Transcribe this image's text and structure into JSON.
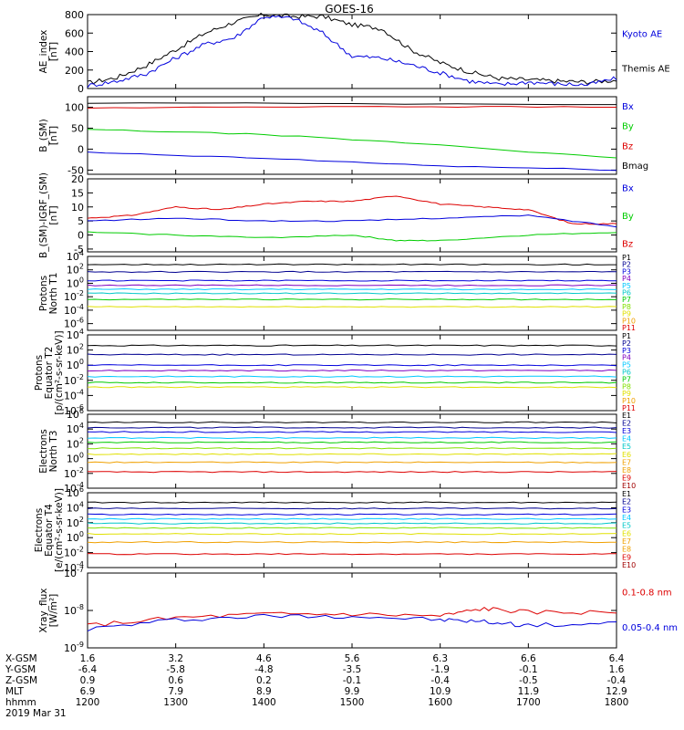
{
  "title": "GOES-16",
  "x_ticks": [
    "1200",
    "1300",
    "1400",
    "1500",
    "1600",
    "1700",
    "1800"
  ],
  "x_range": [
    0,
    360
  ],
  "ephemeris": {
    "labels": [
      "X-GSM",
      "Y-GSM",
      "Z-GSM",
      "MLT",
      "hhmm"
    ],
    "date": "2019 Mar 31",
    "rows": [
      [
        "1.6",
        "3.2",
        "4.6",
        "5.6",
        "6.3",
        "6.6",
        "6.4"
      ],
      [
        "-6.4",
        "-5.8",
        "-4.8",
        "-3.5",
        "-1.9",
        "-0.1",
        "1.6"
      ],
      [
        "0.9",
        "0.6",
        "0.2",
        "-0.1",
        "-0.4",
        "-0.5",
        "-0.4"
      ],
      [
        "6.9",
        "7.9",
        "8.9",
        "9.9",
        "10.9",
        "11.9",
        "12.9"
      ],
      [
        "1200",
        "1300",
        "1400",
        "1500",
        "1600",
        "1700",
        "1800"
      ]
    ]
  },
  "colors": {
    "black": "#000000",
    "blue": "#0000dd",
    "red": "#dd0000",
    "green": "#00cc00",
    "navy": "#000090",
    "purple": "#8000c0",
    "cyan": "#00c8ff",
    "teal": "#00c8c8",
    "lime": "#80e000",
    "yellow": "#e0e000",
    "orange": "#f0a000",
    "darkred": "#a00000"
  },
  "chart_data": [
    {
      "type": "line",
      "ylabel": [
        "AE_index",
        "[nT]"
      ],
      "ylim": [
        0,
        800
      ],
      "yticks": [
        "0",
        "200",
        "400",
        "600",
        "800"
      ],
      "legend": [
        {
          "name": "Kyoto AE",
          "color": "#0000dd"
        },
        {
          "name": "Themis AE",
          "color": "#000000"
        }
      ],
      "series": [
        {
          "name": "Themis AE",
          "color": "#000000",
          "x": [
            0,
            20,
            40,
            60,
            80,
            100,
            120,
            140,
            160,
            180,
            200,
            220,
            240,
            260,
            280,
            300,
            320,
            340,
            360
          ],
          "y": [
            60,
            120,
            250,
            420,
            600,
            720,
            800,
            780,
            780,
            690,
            650,
            420,
            280,
            180,
            110,
            95,
            80,
            70,
            90
          ]
        },
        {
          "name": "Kyoto AE",
          "color": "#0000dd",
          "x": [
            0,
            20,
            40,
            60,
            80,
            100,
            120,
            140,
            160,
            180,
            200,
            220,
            240,
            260,
            280,
            300,
            320,
            340,
            360
          ],
          "y": [
            30,
            80,
            160,
            330,
            480,
            550,
            780,
            760,
            600,
            350,
            330,
            260,
            170,
            80,
            40,
            70,
            50,
            40,
            110
          ]
        }
      ]
    },
    {
      "type": "line",
      "ylabel": [
        "B_(SM)",
        "[nT]"
      ],
      "ylim": [
        -60,
        125
      ],
      "yticks": [
        "-50",
        "0",
        "50",
        "100"
      ],
      "ytickvals": [
        -50,
        0,
        50,
        100
      ],
      "legend": [
        {
          "name": "Bx",
          "color": "#0000dd"
        },
        {
          "name": "By",
          "color": "#00cc00"
        },
        {
          "name": "Bz",
          "color": "#dd0000"
        },
        {
          "name": "Bmag",
          "color": "#000000"
        }
      ],
      "series": [
        {
          "name": "Bmag",
          "color": "#000000",
          "x": [
            0,
            360
          ],
          "y": [
            110,
            107
          ]
        },
        {
          "name": "Bz",
          "color": "#dd0000",
          "x": [
            0,
            180,
            360
          ],
          "y": [
            98,
            102,
            100
          ]
        },
        {
          "name": "By",
          "color": "#00cc00",
          "x": [
            0,
            120,
            240,
            360
          ],
          "y": [
            47,
            35,
            10,
            -22
          ]
        },
        {
          "name": "Bx",
          "color": "#0000dd",
          "x": [
            0,
            120,
            240,
            360
          ],
          "y": [
            -8,
            -22,
            -40,
            -50
          ]
        }
      ]
    },
    {
      "type": "line",
      "ylabel": [
        "B_(SM)-IGRF_(SM)",
        "[nT]"
      ],
      "ylim": [
        -6,
        20
      ],
      "yticks": [
        "-5",
        "0",
        "5",
        "10",
        "15",
        "20"
      ],
      "ytickvals": [
        -5,
        0,
        5,
        10,
        15,
        20
      ],
      "legend": [
        {
          "name": "Bx",
          "color": "#0000dd"
        },
        {
          "name": "By",
          "color": "#00cc00"
        },
        {
          "name": "Bz",
          "color": "#dd0000"
        }
      ],
      "series": [
        {
          "name": "Bz",
          "color": "#dd0000",
          "x": [
            0,
            30,
            60,
            90,
            120,
            150,
            180,
            210,
            240,
            270,
            300,
            330,
            360
          ],
          "y": [
            6,
            7,
            10,
            9,
            11,
            12,
            12,
            14,
            11,
            10,
            9,
            4,
            4
          ]
        },
        {
          "name": "Bx",
          "color": "#0000dd",
          "x": [
            0,
            60,
            120,
            180,
            240,
            300,
            360
          ],
          "y": [
            5,
            6,
            5,
            5,
            6,
            7,
            3
          ]
        },
        {
          "name": "By",
          "color": "#00cc00",
          "x": [
            0,
            60,
            120,
            180,
            210,
            240,
            300,
            360
          ],
          "y": [
            1,
            0,
            -1,
            0,
            -2,
            -2,
            0,
            1
          ]
        }
      ]
    },
    {
      "type": "line",
      "log": true,
      "ylabel": [
        "Protons",
        "North T1"
      ],
      "ylim": [
        -7,
        4
      ],
      "yticks": [
        "10^4",
        "10^2",
        "10^0",
        "10^-2",
        "10^-4",
        "10^-6"
      ],
      "ytickvals": [
        4,
        2,
        0,
        -2,
        -4,
        -6
      ],
      "legend": [
        {
          "name": "P1",
          "color": "#000000"
        },
        {
          "name": "P2",
          "color": "#000090"
        },
        {
          "name": "P3",
          "color": "#0000dd"
        },
        {
          "name": "P4",
          "color": "#8000c0"
        },
        {
          "name": "P5",
          "color": "#00c8ff"
        },
        {
          "name": "P6",
          "color": "#00c8c8"
        },
        {
          "name": "P7",
          "color": "#00cc00"
        },
        {
          "name": "P8",
          "color": "#80e000"
        },
        {
          "name": "P9",
          "color": "#e0e000"
        },
        {
          "name": "P10",
          "color": "#f0a000"
        },
        {
          "name": "P11",
          "color": "#dd0000"
        }
      ],
      "series": [
        {
          "name": "P1",
          "color": "#000000",
          "y": 2.8
        },
        {
          "name": "P2",
          "color": "#000090",
          "y": 1.7
        },
        {
          "name": "P3",
          "color": "#0000dd",
          "y": 0.4
        },
        {
          "name": "P4",
          "color": "#8000c0",
          "y": -0.3
        },
        {
          "name": "P5",
          "color": "#00c8ff",
          "y": -0.9
        },
        {
          "name": "P6",
          "color": "#00c8c8",
          "y": -1.5
        },
        {
          "name": "P7",
          "color": "#00cc00",
          "y": -2.4
        },
        {
          "name": "P8",
          "color": "#e0e000",
          "y": -3.5
        }
      ]
    },
    {
      "type": "line",
      "log": true,
      "ylabel": [
        "Protons",
        "Equator T2",
        "[p/(cm²-s-sr-keV)]"
      ],
      "ylim": [
        -6,
        4
      ],
      "yticks": [
        "10^4",
        "10^2",
        "10^0",
        "10^-2",
        "10^-4",
        "10^-6"
      ],
      "ytickvals": [
        4,
        2,
        0,
        -2,
        -4,
        -6
      ],
      "legend": [
        {
          "name": "P1",
          "color": "#000000"
        },
        {
          "name": "P2",
          "color": "#000090"
        },
        {
          "name": "P3",
          "color": "#0000dd"
        },
        {
          "name": "P4",
          "color": "#8000c0"
        },
        {
          "name": "P5",
          "color": "#00c8ff"
        },
        {
          "name": "P6",
          "color": "#00c8c8"
        },
        {
          "name": "P7",
          "color": "#00cc00"
        },
        {
          "name": "P8",
          "color": "#80e000"
        },
        {
          "name": "P9",
          "color": "#e0e000"
        },
        {
          "name": "P10",
          "color": "#f0a000"
        },
        {
          "name": "P11",
          "color": "#dd0000"
        }
      ],
      "series": [
        {
          "name": "P1",
          "color": "#000000",
          "y": 2.6
        },
        {
          "name": "P2",
          "color": "#000090",
          "y": 1.4
        },
        {
          "name": "P3",
          "color": "#0000dd",
          "y": 0.0
        },
        {
          "name": "P4",
          "color": "#8000c0",
          "y": -0.7
        },
        {
          "name": "P5",
          "color": "#00c8ff",
          "y": -1.5
        },
        {
          "name": "P6",
          "color": "#00cc00",
          "y": -2.3
        },
        {
          "name": "P7",
          "color": "#e0e000",
          "y": -2.9
        }
      ]
    },
    {
      "type": "line",
      "log": true,
      "ylabel": [
        "Electrons",
        "North T3"
      ],
      "ylim": [
        -4,
        6
      ],
      "yticks": [
        "10^6",
        "10^4",
        "10^2",
        "10^0",
        "10^-2",
        "10^-4"
      ],
      "ytickvals": [
        6,
        4,
        2,
        0,
        -2,
        -4
      ],
      "legend": [
        {
          "name": "E1",
          "color": "#000000"
        },
        {
          "name": "E2",
          "color": "#000090"
        },
        {
          "name": "E3",
          "color": "#0000dd"
        },
        {
          "name": "E4",
          "color": "#00c8ff"
        },
        {
          "name": "E5",
          "color": "#00c8c8"
        },
        {
          "name": "E6",
          "color": "#e0e000"
        },
        {
          "name": "E7",
          "color": "#f0a000"
        },
        {
          "name": "E8",
          "color": "#f0a000"
        },
        {
          "name": "E9",
          "color": "#dd0000"
        },
        {
          "name": "E10",
          "color": "#a00000"
        }
      ],
      "series": [
        {
          "name": "E1",
          "color": "#000000",
          "y": 4.9
        },
        {
          "name": "E2",
          "color": "#000090",
          "y": 4.2
        },
        {
          "name": "E3",
          "color": "#0000dd",
          "y": 3.6
        },
        {
          "name": "E4",
          "color": "#00c8ff",
          "y": 2.8
        },
        {
          "name": "E5",
          "color": "#00cc00",
          "y": 2.2
        },
        {
          "name": "E6",
          "color": "#80e000",
          "y": 1.4
        },
        {
          "name": "E7",
          "color": "#e0e000",
          "y": 0.6
        },
        {
          "name": "E8",
          "color": "#f0a000",
          "y": -0.5
        },
        {
          "name": "E9",
          "color": "#dd0000",
          "y": -1.8
        }
      ]
    },
    {
      "type": "line",
      "log": true,
      "ylabel": [
        "Electrons",
        "Equator T4",
        "[e/(cm²-s-sr-keV)]"
      ],
      "ylim": [
        -4,
        6
      ],
      "yticks": [
        "10^6",
        "10^4",
        "10^2",
        "10^0",
        "10^-2",
        "10^-4"
      ],
      "ytickvals": [
        6,
        4,
        2,
        0,
        -2,
        -4
      ],
      "legend": [
        {
          "name": "E1",
          "color": "#000000"
        },
        {
          "name": "E2",
          "color": "#000090"
        },
        {
          "name": "E3",
          "color": "#0000dd"
        },
        {
          "name": "E4",
          "color": "#00c8ff"
        },
        {
          "name": "E5",
          "color": "#00c8c8"
        },
        {
          "name": "E6",
          "color": "#e0e000"
        },
        {
          "name": "E7",
          "color": "#f0a000"
        },
        {
          "name": "E8",
          "color": "#f0a000"
        },
        {
          "name": "E9",
          "color": "#dd0000"
        },
        {
          "name": "E10",
          "color": "#a00000"
        }
      ],
      "series": [
        {
          "name": "E1",
          "color": "#000000",
          "y": 4.7
        },
        {
          "name": "E2",
          "color": "#000090",
          "y": 3.9
        },
        {
          "name": "E3",
          "color": "#0000dd",
          "y": 3.1
        },
        {
          "name": "E4",
          "color": "#00c8ff",
          "y": 2.5
        },
        {
          "name": "E5",
          "color": "#00c8c8",
          "y": 1.9
        },
        {
          "name": "E6",
          "color": "#80e000",
          "y": 1.3
        },
        {
          "name": "E7",
          "color": "#e0e000",
          "y": 0.5
        },
        {
          "name": "E8",
          "color": "#f0a000",
          "y": -0.6
        },
        {
          "name": "E9",
          "color": "#dd0000",
          "y": -2.2
        }
      ]
    },
    {
      "type": "line",
      "log": true,
      "ylabel": [
        "Xray_flux",
        "[W/m²]"
      ],
      "ylim": [
        -9,
        -7
      ],
      "yticks": [
        "10^-7",
        "10^-8",
        "10^-9"
      ],
      "ytickvals": [
        -7,
        -8,
        -9
      ],
      "legend": [
        {
          "name": "0.1-0.8 nm",
          "color": "#dd0000"
        },
        {
          "name": "0.05-0.4 nm",
          "color": "#0000dd"
        }
      ],
      "series": [
        {
          "name": "0.1-0.8 nm",
          "color": "#dd0000",
          "x": [
            0,
            60,
            120,
            180,
            240,
            270,
            300,
            360
          ],
          "y": [
            -8.4,
            -8.2,
            -8.1,
            -8.1,
            -8.15,
            -7.95,
            -8.05,
            -8.05
          ]
        },
        {
          "name": "0.05-0.4 nm",
          "color": "#0000dd",
          "x": [
            0,
            60,
            120,
            180,
            240,
            270,
            300,
            360
          ],
          "y": [
            -8.5,
            -8.25,
            -8.15,
            -8.15,
            -8.25,
            -8.3,
            -8.4,
            -8.35
          ]
        }
      ]
    }
  ]
}
